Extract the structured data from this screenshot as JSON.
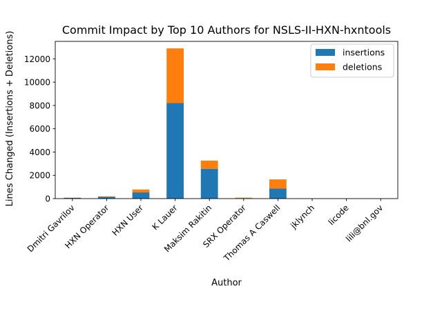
{
  "chart_data": {
    "type": "bar",
    "stacked": true,
    "title": "Commit Impact by Top 10 Authors for NSLS-II-HXN-hxntools",
    "xlabel": "Author",
    "ylabel": "Lines Changed (Insertions + Deletions)",
    "categories": [
      "Dmitri Gavrilov",
      "HXN Operator",
      "HXN User",
      "K Lauer",
      "Maksim Rakitin",
      "SRX Operator",
      "Thomas A Caswell",
      "jklynch",
      "licode",
      "lili@bnl.gov"
    ],
    "series": [
      {
        "name": "insertions",
        "color": "#1f77b4",
        "values": [
          60,
          150,
          530,
          8200,
          2560,
          40,
          870,
          5,
          5,
          5
        ]
      },
      {
        "name": "deletions",
        "color": "#ff7f0e",
        "values": [
          20,
          40,
          250,
          4700,
          700,
          40,
          780,
          5,
          5,
          5
        ]
      }
    ],
    "ylim": [
      0,
      13500
    ],
    "yticks": [
      0,
      2000,
      4000,
      6000,
      8000,
      10000,
      12000
    ],
    "grid": false,
    "legend_position": "top-right"
  }
}
